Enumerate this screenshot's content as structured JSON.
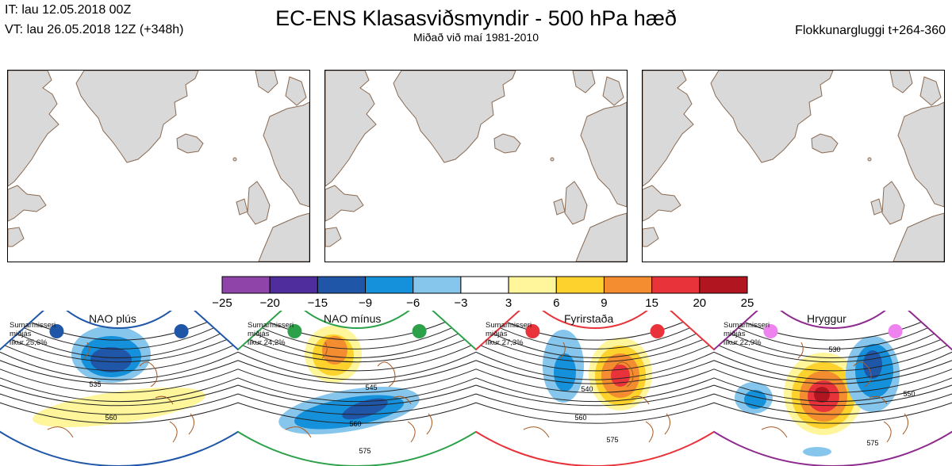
{
  "header": {
    "it": "IT: lau 12.05.2018 00Z",
    "vt": "VT: lau 26.05.2018 12Z  (+348h)",
    "title": "EC-ENS Klasasviðsmyndir - 500 hPa hæð",
    "subtitle": "Miðað við maí 1981-2010",
    "window": "Flokkunargluggi t+264-360"
  },
  "maps": [
    {
      "name": "map-panel-1"
    },
    {
      "name": "map-panel-2"
    },
    {
      "name": "map-panel-3"
    }
  ],
  "colorbar": {
    "ticks": [
      "−25",
      "−20",
      "−15",
      "−9",
      "−6",
      "−3",
      "3",
      "6",
      "9",
      "15",
      "20",
      "25"
    ],
    "colors": [
      "#8e44a8",
      "#4f2d9c",
      "#1f56a8",
      "#1590da",
      "#86c6ec",
      "#ffffff",
      "#fff59a",
      "#fdd22c",
      "#f48c30",
      "#e9333a",
      "#b01520"
    ]
  },
  "regimes": [
    {
      "name": "NAO plús",
      "season": "Sumarmisseri",
      "period": "miðjás",
      "prob": "líkur 25,6%",
      "color": "#1f56a8",
      "dot": "#1f56a8",
      "contours": [
        "535",
        "560"
      ]
    },
    {
      "name": "NAO mínus",
      "season": "Sumarmisseri",
      "period": "miðjás",
      "prob": "líkur 24,2%",
      "color": "#2ca14a",
      "dot": "#2ca14a",
      "contours": [
        "545",
        "560",
        "575"
      ]
    },
    {
      "name": "Fyrirstaða",
      "season": "Sumarmisseri",
      "period": "miðjás",
      "prob": "líkur 27,3%",
      "color": "#e9333a",
      "dot": "#e9333a",
      "contours": [
        "540",
        "560",
        "575"
      ]
    },
    {
      "name": "Hryggur",
      "season": "Sumarmisseri",
      "period": "miðjás",
      "prob": "líkur 22,9%",
      "color": "#8e2a8e",
      "dot": "#ee82ee",
      "contours": [
        "530",
        "550",
        "575"
      ]
    }
  ]
}
